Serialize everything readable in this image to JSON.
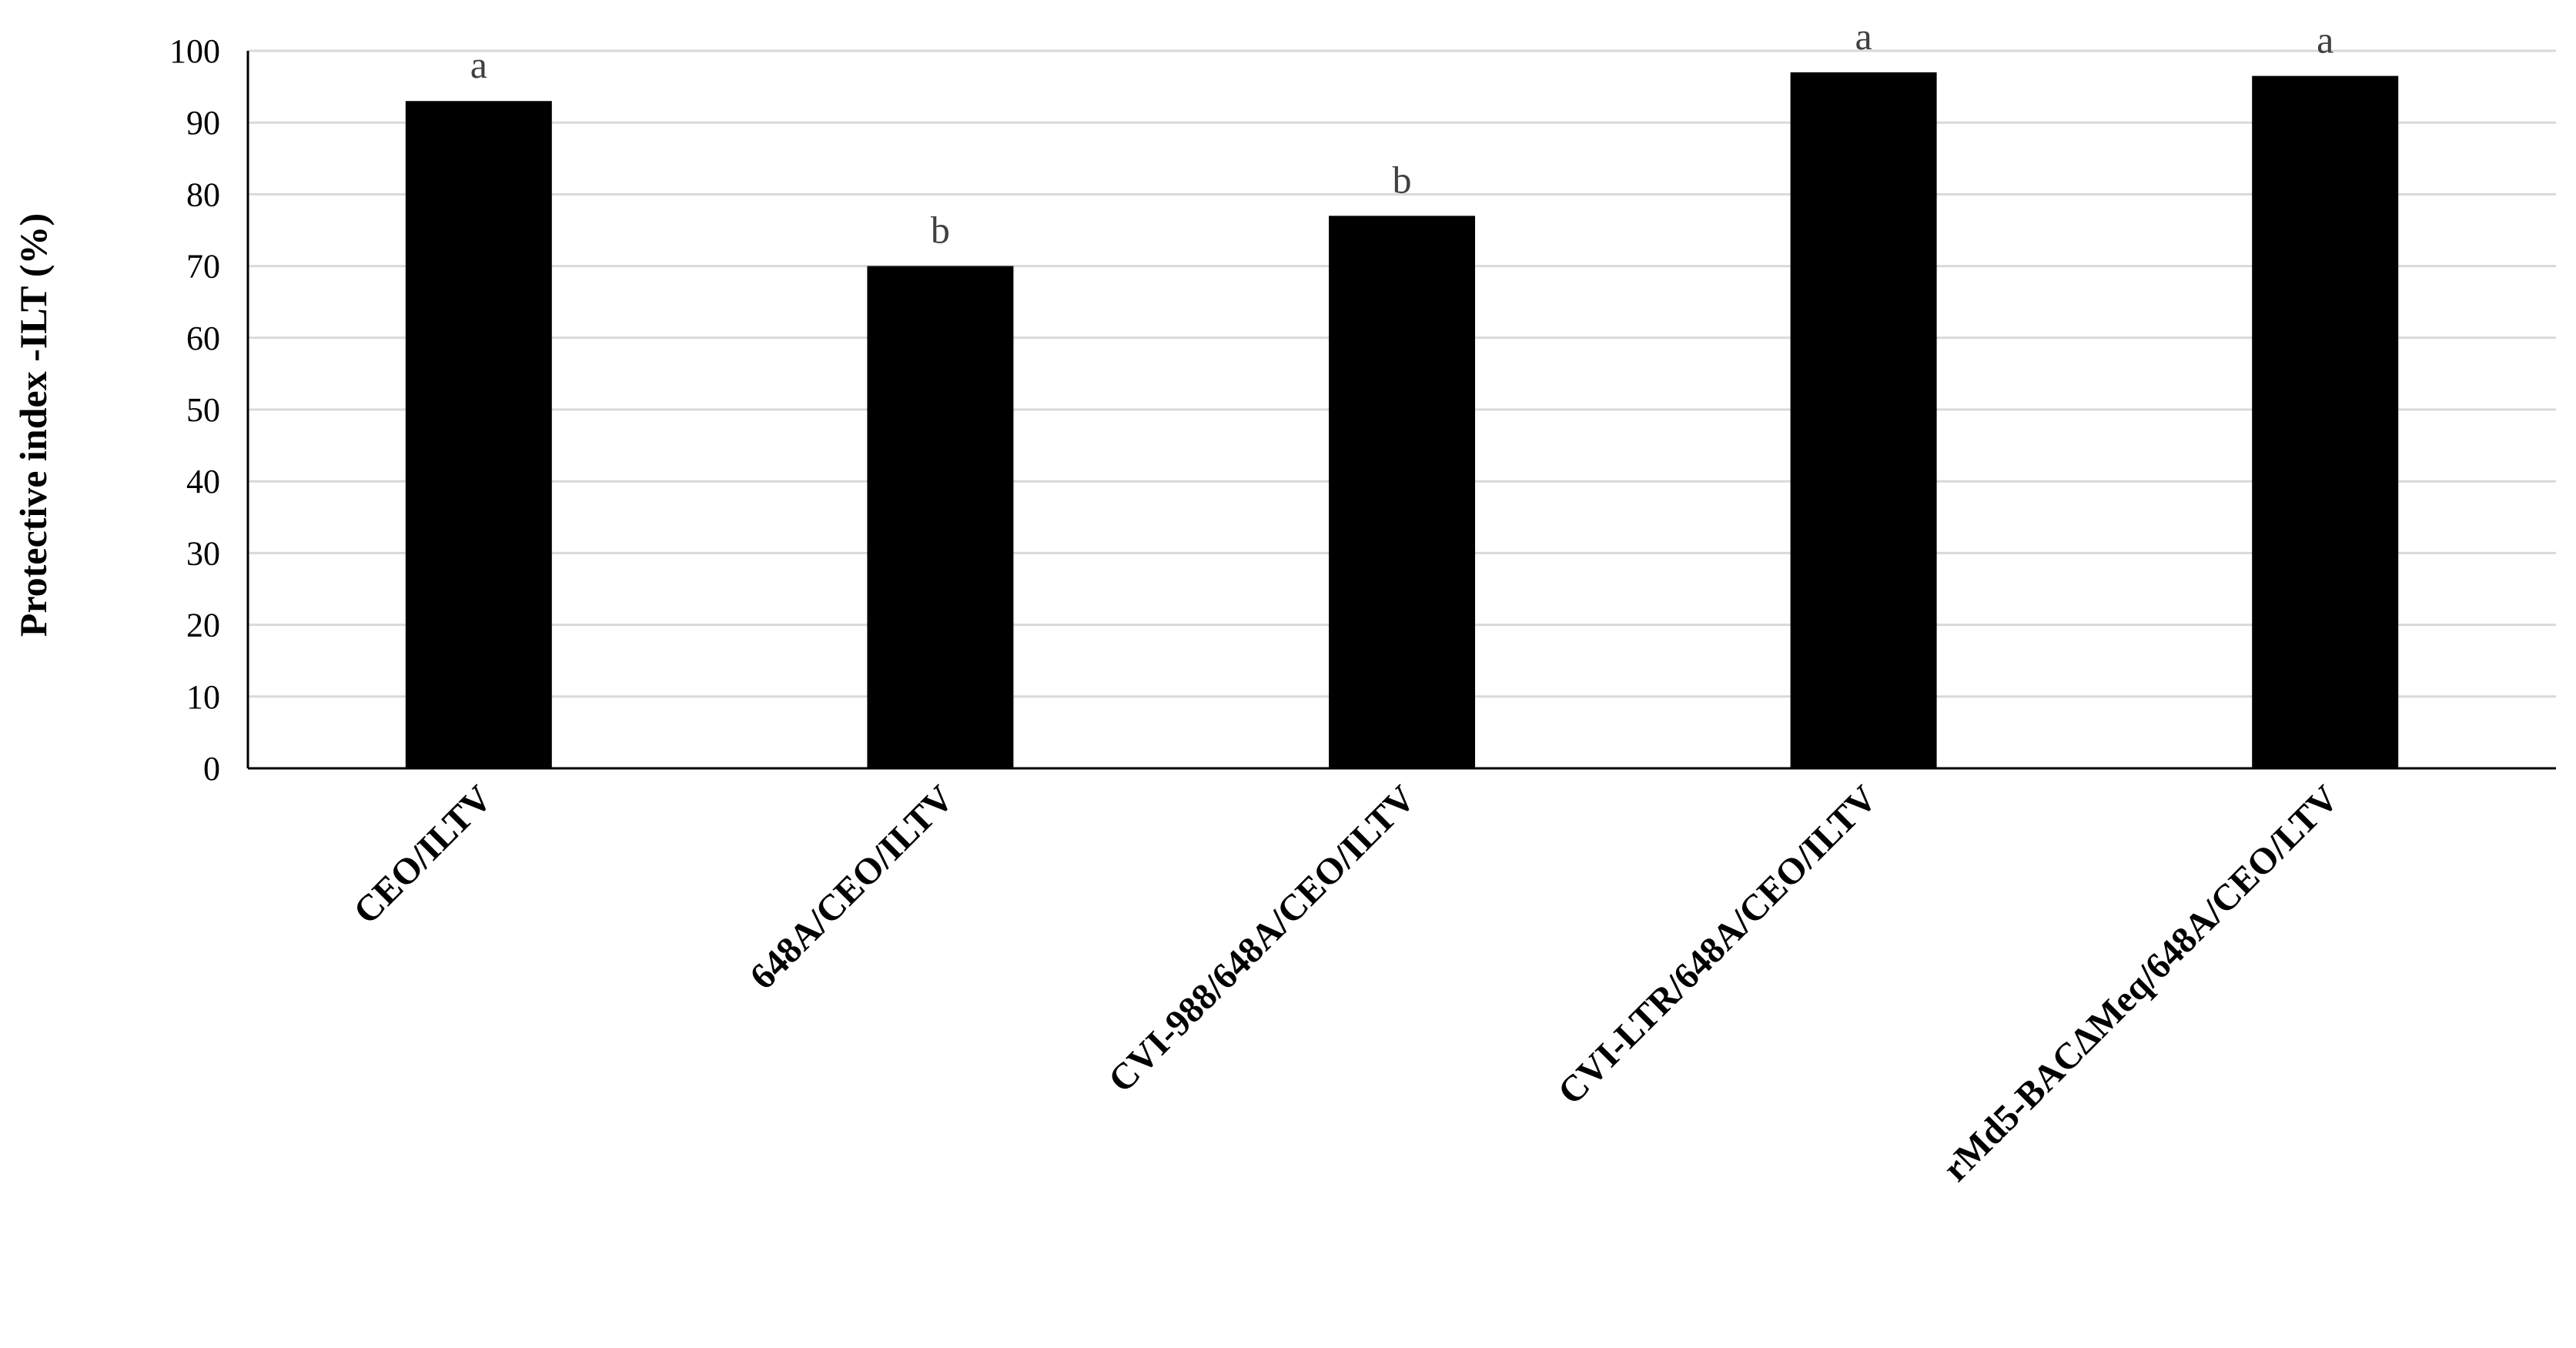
{
  "chart_data": {
    "type": "bar",
    "categories": [
      "CEO/ILTV",
      "648A/CEO/ILTV",
      "CVI-988/648A/CEO/ILTV",
      "CVI-LTR/648A/CEO/ILTV",
      "rMd5-BACΔMeq/648A/CEO/LTV"
    ],
    "values": [
      93,
      70,
      77,
      97,
      96.5
    ],
    "significance_letters": [
      "a",
      "b",
      "b",
      "a",
      "a"
    ],
    "title": "",
    "xlabel": "",
    "ylabel": "Protective index -ILT (%)",
    "ylim": [
      0,
      100
    ],
    "yticks": [
      0,
      10,
      20,
      30,
      40,
      50,
      60,
      70,
      80,
      90,
      100
    ],
    "grid": "horizontal",
    "legend": "none",
    "colors": {
      "bar": "#000000",
      "grid": "#d9d9d9",
      "axis": "#000000",
      "sig_text": "#404040"
    }
  }
}
